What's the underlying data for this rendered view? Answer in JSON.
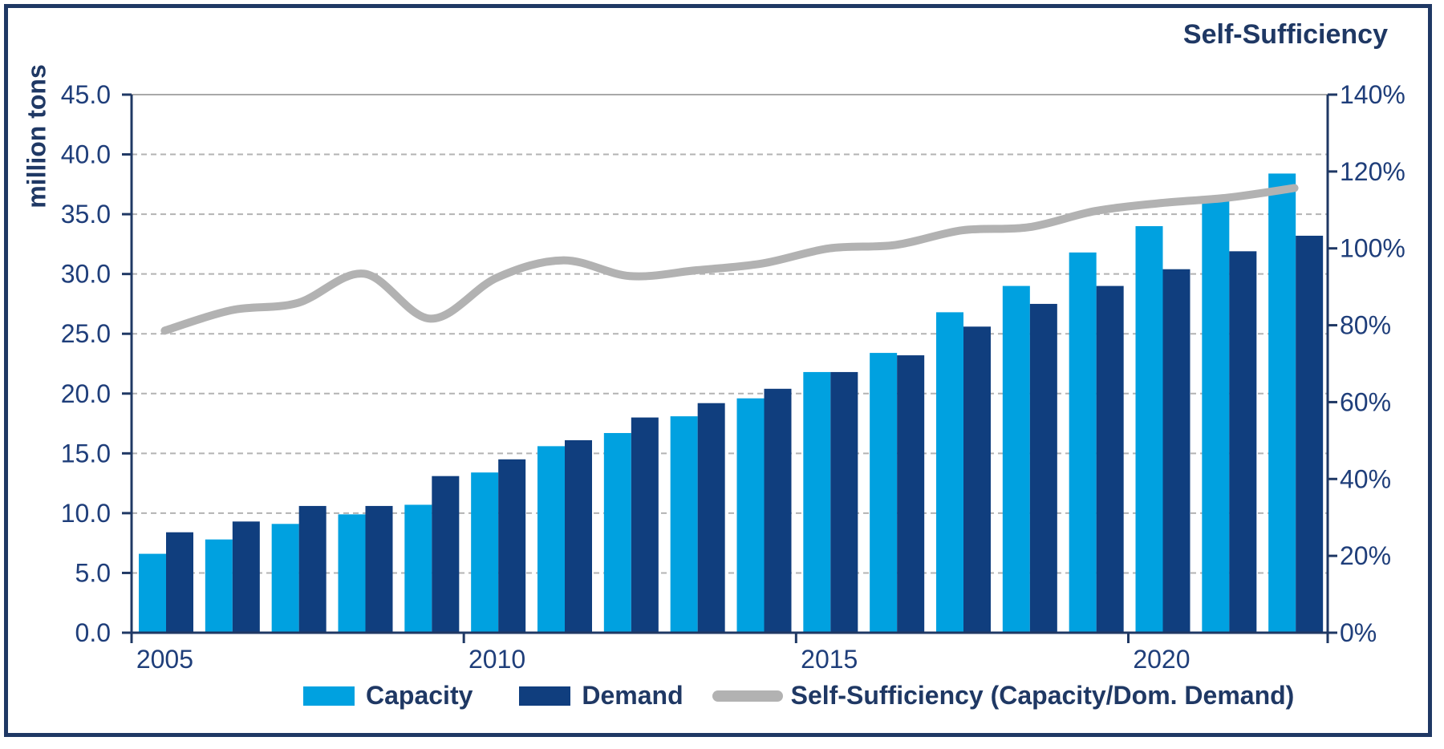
{
  "titles": {
    "right_axis_title": "Self-Sufficiency",
    "left_axis_title": "million tons"
  },
  "colors": {
    "capacity_bar": "#00A1E0",
    "demand_bar": "#103E7E",
    "self_sufficiency_line": "#B2B2B2",
    "axis_line": "#1F3864",
    "axis_text": "#1F3E7A",
    "gridline": "#B3B3B3",
    "top_gridline": "#A9A9A9",
    "border": "#1F3864",
    "background": "#FFFFFF"
  },
  "chart_data": {
    "type": "combo",
    "subtype": "grouped-bars-with-line",
    "categories": [
      2005,
      2006,
      2007,
      2008,
      2009,
      2010,
      2011,
      2012,
      2013,
      2014,
      2015,
      2016,
      2017,
      2018,
      2019,
      2020,
      2021,
      2022
    ],
    "x_axis_tick_labels": [
      "2005",
      "2010",
      "2015",
      "2020"
    ],
    "series": [
      {
        "name": "Capacity",
        "type": "bar",
        "axis": "left",
        "color": "#00A1E0",
        "values": [
          6.6,
          7.8,
          9.1,
          9.9,
          10.7,
          13.4,
          15.6,
          16.7,
          18.1,
          19.6,
          21.8,
          23.4,
          26.8,
          29.0,
          31.8,
          34.0,
          36.1,
          38.4
        ]
      },
      {
        "name": "Demand",
        "type": "bar",
        "axis": "left",
        "color": "#103E7E",
        "values": [
          8.4,
          9.3,
          10.6,
          10.6,
          13.1,
          14.5,
          16.1,
          18.0,
          19.2,
          20.4,
          21.8,
          23.2,
          25.6,
          27.5,
          29.0,
          30.4,
          31.9,
          33.2
        ]
      },
      {
        "name": "Self-Sufficiency (Capacity/Dom. Demand)",
        "type": "line",
        "axis": "right",
        "color": "#B2B2B2",
        "values": [
          78.6,
          83.9,
          85.8,
          93.4,
          81.7,
          92.4,
          96.9,
          92.8,
          94.3,
          96.1,
          100.0,
          100.9,
          104.7,
          105.5,
          109.7,
          111.8,
          113.2,
          115.7
        ]
      }
    ],
    "left_axis": {
      "title": "million tons",
      "min": 0,
      "max": 45,
      "step": 5,
      "tick_labels": [
        "0.0",
        "5.0",
        "10.0",
        "15.0",
        "20.0",
        "25.0",
        "30.0",
        "35.0",
        "40.0",
        "45.0"
      ]
    },
    "right_axis": {
      "title": "Self-Sufficiency",
      "min": 0,
      "max": 140,
      "step": 20,
      "tick_labels": [
        "0%",
        "20%",
        "40%",
        "60%",
        "80%",
        "100%",
        "120%",
        "140%"
      ]
    },
    "grid": true,
    "legend_position": "bottom"
  }
}
